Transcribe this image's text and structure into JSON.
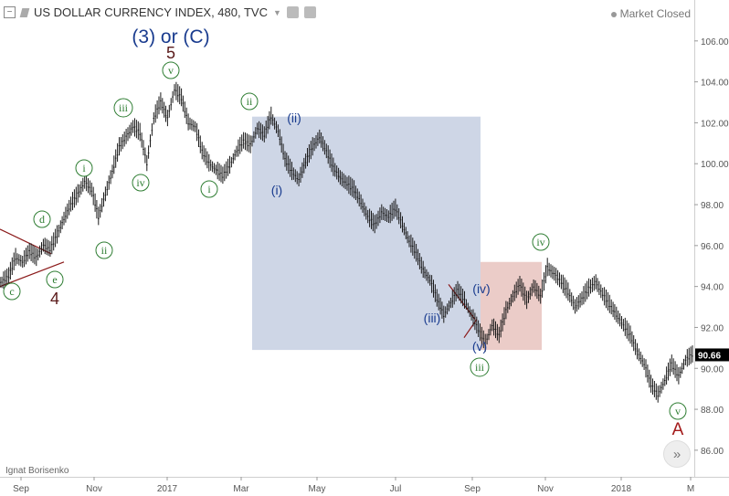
{
  "header": {
    "title": "US DOLLAR CURRENCY INDEX, 480, TVC",
    "collapse_icon": "minus-square-icon",
    "flag_icon": "flag-icon",
    "dropdown_icon": "chevron-down-icon",
    "settings_icon": "gear-icon",
    "source_icon": "source-icon"
  },
  "status": {
    "text": "Market Closed"
  },
  "author": {
    "text": "Ignat Borisenko"
  },
  "scroll_button": {
    "label": "»",
    "icon": "double-chevron-right-icon"
  },
  "chart_data": {
    "type": "line",
    "x_ticks": [
      "Sep",
      "Nov",
      "2017",
      "Mar",
      "May",
      "Jul",
      "Sep",
      "Nov",
      "2018",
      "M"
    ],
    "y_ticks": [
      "86.00",
      "88.00",
      "90.00",
      "92.00",
      "94.00",
      "96.00",
      "98.00",
      "100.00",
      "102.00",
      "104.00",
      "106.00"
    ],
    "ylim": [
      84.7,
      108.0
    ],
    "last_price": "90.66",
    "colors": {
      "price": "#1a1a1a",
      "wave_label": "#2e7d32",
      "wave_label_blue": "#1a3c8f",
      "wave_label_dark": "#5a1a1a",
      "box_blue": "#c9d1e3",
      "box_red": "#e9c7c2",
      "trendline": "#8b1a1a"
    },
    "series": [
      {
        "values": [
          94.2,
          94.5,
          95.4,
          95.2,
          95.7,
          95.4,
          96.0,
          95.8,
          96.5,
          97.3,
          98.0,
          98.5,
          99.1,
          98.7,
          97.4,
          98.5,
          99.6,
          100.8,
          101.3,
          101.8,
          101.5,
          100.0,
          102.2,
          103.0,
          102.2,
          103.6,
          103.2,
          102.0,
          101.8,
          100.6,
          100.0,
          99.7,
          99.4,
          99.9,
          100.6,
          101.1,
          100.9,
          101.7,
          101.4,
          102.3,
          101.6,
          100.2,
          99.6,
          99.2,
          100.1,
          100.8,
          101.3,
          100.6,
          99.8,
          99.3,
          99.0,
          98.7,
          98.1,
          97.4,
          97.0,
          97.6,
          97.4,
          97.8,
          97.0,
          96.2,
          95.6,
          94.8,
          94.3,
          93.4,
          92.6,
          93.2,
          93.8,
          93.3,
          92.6,
          91.9,
          91.2,
          92.1,
          91.6,
          92.8,
          93.5,
          94.1,
          93.3,
          94.0,
          93.5,
          94.9,
          94.6,
          94.2,
          93.7,
          93.0,
          93.4,
          93.9,
          94.2,
          93.6,
          93.1,
          92.6,
          92.1,
          91.6,
          90.8,
          90.2,
          89.2,
          88.7,
          89.4,
          90.2,
          89.6,
          90.4,
          90.66
        ]
      }
    ],
    "annotations": [
      {
        "text": "(3) or (C)",
        "style": "blue-large"
      },
      {
        "text": "5",
        "style": "dark-large"
      },
      {
        "text": "4",
        "style": "dark-large"
      },
      {
        "text": "A",
        "style": "red-large"
      },
      {
        "text": "c",
        "style": "circle-green"
      },
      {
        "text": "d",
        "style": "circle-green"
      },
      {
        "text": "e",
        "style": "circle-green"
      },
      {
        "text": "i",
        "style": "circle-green"
      },
      {
        "text": "ii",
        "style": "circle-green"
      },
      {
        "text": "iii",
        "style": "circle-green"
      },
      {
        "text": "iv",
        "style": "circle-green"
      },
      {
        "text": "v",
        "style": "circle-green"
      },
      {
        "text": "ii",
        "style": "circle-green"
      },
      {
        "text": "i",
        "style": "circle-green"
      },
      {
        "text": "iii",
        "style": "circle-green"
      },
      {
        "text": "iv",
        "style": "circle-green"
      },
      {
        "text": "v",
        "style": "circle-green"
      },
      {
        "text": "(i)",
        "style": "blue"
      },
      {
        "text": "(ii)",
        "style": "blue"
      },
      {
        "text": "(iii)",
        "style": "blue"
      },
      {
        "text": "(iv)",
        "style": "blue"
      },
      {
        "text": "(v)",
        "style": "blue"
      }
    ]
  }
}
